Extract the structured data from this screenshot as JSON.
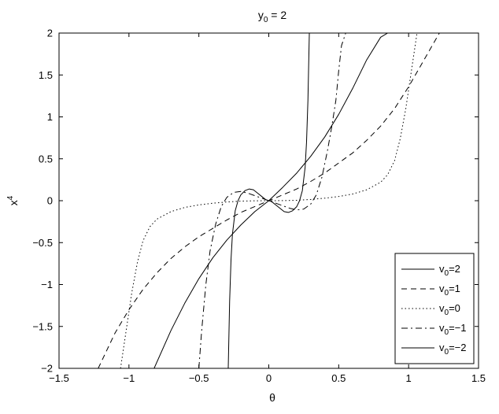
{
  "chart_data": {
    "type": "line",
    "title": {
      "main": "y",
      "sub": "0",
      "rest": " = 2"
    },
    "xlabel": "θ",
    "ylabel": {
      "main": "x",
      "sup": "4"
    },
    "xlim": [
      -1.5,
      1.5
    ],
    "ylim": [
      -2,
      2
    ],
    "xticks": [
      -1.5,
      -1,
      -0.5,
      0,
      0.5,
      1,
      1.5
    ],
    "xtick_labels": [
      "−1.5",
      "−1",
      "−0.5",
      "0",
      "0.5",
      "1",
      "1.5"
    ],
    "yticks": [
      -2,
      -1.5,
      -1,
      -0.5,
      0,
      0.5,
      1,
      1.5,
      2
    ],
    "ytick_labels": [
      "−2",
      "−1.5",
      "−1",
      "−0.5",
      "0",
      "0.5",
      "1",
      "1.5",
      "2"
    ],
    "grid": false,
    "legend_position": "bottom-right",
    "series": [
      {
        "legend": {
          "main": "v",
          "sub": "0",
          "rest": "=2"
        },
        "style": "solid",
        "x": [
          -0.82,
          -0.7,
          -0.6,
          -0.5,
          -0.4,
          -0.3,
          -0.2,
          -0.1,
          0,
          0.1,
          0.2,
          0.3,
          0.4,
          0.5,
          0.6,
          0.7,
          0.8,
          0.85
        ],
        "y": [
          -2.0,
          -1.55,
          -1.22,
          -0.93,
          -0.68,
          -0.47,
          -0.29,
          -0.13,
          0,
          0.16,
          0.33,
          0.53,
          0.76,
          1.03,
          1.34,
          1.68,
          1.95,
          2.0
        ]
      },
      {
        "legend": {
          "main": "v",
          "sub": "0",
          "rest": "=1"
        },
        "style": "dashed",
        "x": [
          -1.22,
          -1.1,
          -1.0,
          -0.9,
          -0.8,
          -0.7,
          -0.6,
          -0.5,
          -0.4,
          -0.3,
          -0.2,
          -0.1,
          0,
          0.1,
          0.2,
          0.3,
          0.4,
          0.5,
          0.6,
          0.7,
          0.8,
          0.9,
          1.0,
          1.1,
          1.22
        ],
        "y": [
          -2.0,
          -1.58,
          -1.3,
          -1.06,
          -0.86,
          -0.69,
          -0.55,
          -0.43,
          -0.33,
          -0.23,
          -0.14,
          -0.07,
          0,
          0.07,
          0.14,
          0.23,
          0.33,
          0.45,
          0.57,
          0.72,
          0.89,
          1.1,
          1.36,
          1.65,
          2.0
        ]
      },
      {
        "legend": {
          "main": "v",
          "sub": "0",
          "rest": "=0"
        },
        "style": "dotted",
        "x": [
          -1.06,
          -1.02,
          -0.98,
          -0.94,
          -0.9,
          -0.85,
          -0.8,
          -0.7,
          -0.6,
          -0.5,
          -0.4,
          -0.3,
          -0.2,
          -0.1,
          0,
          0.1,
          0.2,
          0.3,
          0.4,
          0.5,
          0.6,
          0.7,
          0.8,
          0.85,
          0.9,
          0.94,
          0.98,
          1.02,
          1.06
        ],
        "y": [
          -2.0,
          -1.55,
          -1.1,
          -0.74,
          -0.48,
          -0.31,
          -0.22,
          -0.13,
          -0.08,
          -0.05,
          -0.03,
          -0.015,
          -0.005,
          -0.001,
          0,
          0.001,
          0.005,
          0.015,
          0.03,
          0.05,
          0.08,
          0.13,
          0.22,
          0.31,
          0.48,
          0.74,
          1.1,
          1.55,
          2.0
        ]
      },
      {
        "legend": {
          "main": "v",
          "sub": "0",
          "rest": "=−1"
        },
        "style": "dashdot",
        "x": [
          -0.5,
          -0.48,
          -0.45,
          -0.42,
          -0.38,
          -0.34,
          -0.3,
          -0.25,
          -0.2,
          -0.15,
          -0.1,
          -0.05,
          0,
          0.05,
          0.1,
          0.15,
          0.2,
          0.25,
          0.3,
          0.34,
          0.38,
          0.42,
          0.45,
          0.48,
          0.5,
          0.52,
          0.55
        ],
        "y": [
          -2.0,
          -1.55,
          -1.0,
          -0.6,
          -0.28,
          -0.07,
          0.04,
          0.1,
          0.11,
          0.09,
          0.06,
          0.03,
          0,
          -0.03,
          -0.06,
          -0.09,
          -0.11,
          -0.1,
          -0.04,
          0.07,
          0.28,
          0.6,
          0.88,
          1.2,
          1.55,
          1.85,
          2.0
        ]
      },
      {
        "legend": {
          "main": "v",
          "sub": "0",
          "rest": "=−2"
        },
        "style": "solid",
        "x": [
          -0.29,
          -0.285,
          -0.28,
          -0.27,
          -0.26,
          -0.24,
          -0.22,
          -0.2,
          -0.17,
          -0.14,
          -0.11,
          -0.08,
          -0.05,
          -0.02,
          0,
          0.02,
          0.05,
          0.08,
          0.11,
          0.14,
          0.17,
          0.2,
          0.22,
          0.24,
          0.26,
          0.27,
          0.28,
          0.285,
          0.29
        ],
        "y": [
          -2.0,
          -1.6,
          -1.2,
          -0.7,
          -0.4,
          -0.12,
          0.0,
          0.07,
          0.12,
          0.14,
          0.13,
          0.09,
          0.05,
          0.01,
          0,
          -0.01,
          -0.05,
          -0.09,
          -0.13,
          -0.14,
          -0.12,
          -0.07,
          0.0,
          0.12,
          0.4,
          0.7,
          1.2,
          1.6,
          2.0
        ]
      }
    ]
  }
}
